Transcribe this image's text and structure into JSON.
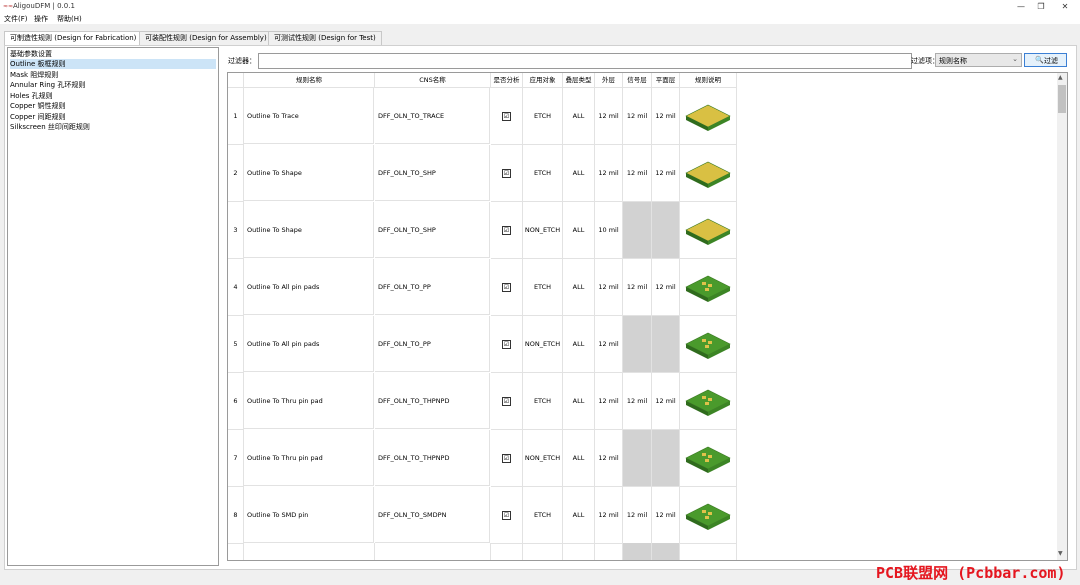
{
  "window": {
    "title": "AligouDFM | 0.0.1",
    "app_icon": "app-logo-icon",
    "minimize": "—",
    "maximize": "❐",
    "close": "✕"
  },
  "menu": [
    "文件(F)",
    "操作",
    "帮助(H)"
  ],
  "tabs": [
    "可制造性规则 (Design for Fabrication)",
    "可装配性规则 (Design for Assembly)",
    "可测试性规则 (Design for Test)"
  ],
  "sidebar": {
    "items": [
      "基础参数设置",
      "Outline 板框规则",
      "Mask 阻焊规则",
      "Annular Ring 孔环规则",
      "Holes 孔规则",
      "Copper 铜性规则",
      "Copper 间距规则",
      "Silkscreen 丝印间距规则"
    ]
  },
  "filter": {
    "label": "过滤器：",
    "value": "",
    "field_label": "过滤项：",
    "field_value": "规则名称",
    "button_label": "过滤",
    "button_icon": "search-icon"
  },
  "table": {
    "headers": [
      "规则名称",
      "CNS名称",
      "是否分析",
      "应用对象",
      "叠层类型",
      "外层",
      "信号层",
      "平面层",
      "规则说明"
    ],
    "rows": [
      {
        "num": "1",
        "name": "Outline To Trace",
        "cns": "DFF_OLN_TO_TRACE",
        "checked": "☑",
        "target": "ETCH",
        "layer_type": "ALL",
        "outer": "12 mil",
        "signal": "12 mil",
        "plane": "12 mil",
        "thumb": "outline-trace-diagram"
      },
      {
        "num": "2",
        "name": "Outline To Shape",
        "cns": "DFF_OLN_TO_SHP",
        "checked": "☑",
        "target": "ETCH",
        "layer_type": "ALL",
        "outer": "12 mil",
        "signal": "12 mil",
        "plane": "12 mil",
        "thumb": "outline-shape-diagram"
      },
      {
        "num": "3",
        "name": "Outline To Shape",
        "cns": "DFF_OLN_TO_SHP",
        "checked": "☑",
        "target": "NON_ETCH",
        "layer_type": "ALL",
        "outer": "10 mil",
        "signal": "",
        "plane": "",
        "thumb": "outline-shape-diagram"
      },
      {
        "num": "4",
        "name": "Outline To All pin pads",
        "cns": "DFF_OLN_TO_PP",
        "checked": "☑",
        "target": "ETCH",
        "layer_type": "ALL",
        "outer": "12 mil",
        "signal": "12 mil",
        "plane": "12 mil",
        "thumb": "outline-pad-diagram"
      },
      {
        "num": "5",
        "name": "Outline To All pin pads",
        "cns": "DFF_OLN_TO_PP",
        "checked": "☑",
        "target": "NON_ETCH",
        "layer_type": "ALL",
        "outer": "12 mil",
        "signal": "",
        "plane": "",
        "thumb": "outline-pad-diagram"
      },
      {
        "num": "6",
        "name": "Outline To Thru pin pad",
        "cns": "DFF_OLN_TO_THPNPD",
        "checked": "☑",
        "target": "ETCH",
        "layer_type": "ALL",
        "outer": "12 mil",
        "signal": "12 mil",
        "plane": "12 mil",
        "thumb": "outline-thru-pad-diagram"
      },
      {
        "num": "7",
        "name": "Outline To Thru pin pad",
        "cns": "DFF_OLN_TO_THPNPD",
        "checked": "☑",
        "target": "NON_ETCH",
        "layer_type": "ALL",
        "outer": "12 mil",
        "signal": "",
        "plane": "",
        "thumb": "outline-thru-pad-diagram"
      },
      {
        "num": "8",
        "name": "Outline To SMD pin",
        "cns": "DFF_OLN_TO_SMDPN",
        "checked": "☑",
        "target": "ETCH",
        "layer_type": "ALL",
        "outer": "12 mil",
        "signal": "12 mil",
        "plane": "12 mil",
        "thumb": "outline-smd-diagram"
      }
    ]
  },
  "watermark": "PCB联盟网 (Pcbbar.com)"
}
